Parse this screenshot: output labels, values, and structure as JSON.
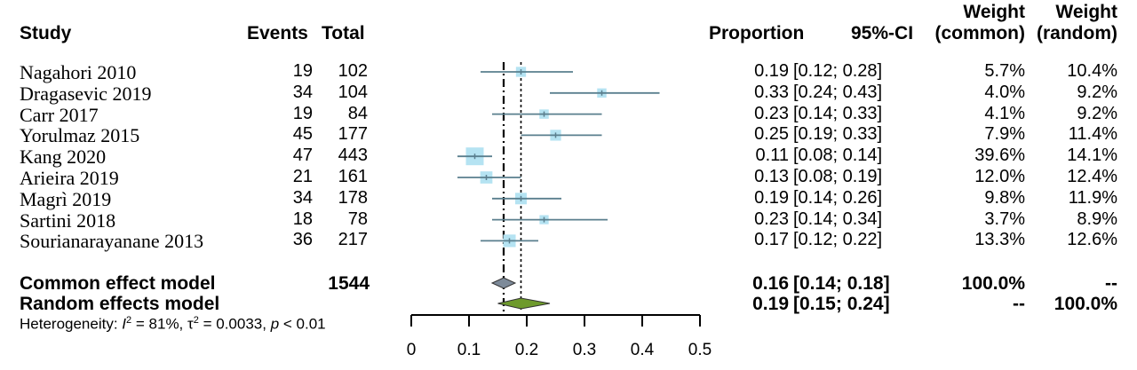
{
  "headers": {
    "study": "Study",
    "events": "Events",
    "total": "Total",
    "proportion": "Proportion",
    "ci": "95%-CI",
    "weight_common_line1": "Weight",
    "weight_common_line2": "(common)",
    "weight_random_line1": "Weight",
    "weight_random_line2": "(random)"
  },
  "chart_data": {
    "type": "forest",
    "xlim": [
      0,
      0.5
    ],
    "xticks": [
      0,
      0.1,
      0.2,
      0.3,
      0.4,
      0.5
    ],
    "xtick_labels": [
      "0",
      "0.1",
      "0.2",
      "0.3",
      "0.4",
      "0.5"
    ],
    "common_line": 0.16,
    "random_line": 0.19,
    "studies": [
      {
        "name": "Nagahori 2010",
        "events": "19",
        "total": "102",
        "prop": 0.19,
        "lo": 0.12,
        "hi": 0.28,
        "prop_text": "0.19",
        "ci_text": "[0.12; 0.28]",
        "w_common": "5.7%",
        "w_random": "10.4%",
        "w": 5.7
      },
      {
        "name": "Dragasevic 2019",
        "events": "34",
        "total": "104",
        "prop": 0.33,
        "lo": 0.24,
        "hi": 0.43,
        "prop_text": "0.33",
        "ci_text": "[0.24; 0.43]",
        "w_common": "4.0%",
        "w_random": "9.2%",
        "w": 4.0
      },
      {
        "name": "Carr 2017",
        "events": "19",
        "total": "84",
        "prop": 0.23,
        "lo": 0.14,
        "hi": 0.33,
        "prop_text": "0.23",
        "ci_text": "[0.14; 0.33]",
        "w_common": "4.1%",
        "w_random": "9.2%",
        "w": 4.1
      },
      {
        "name": "Yorulmaz 2015",
        "events": "45",
        "total": "177",
        "prop": 0.25,
        "lo": 0.19,
        "hi": 0.33,
        "prop_text": "0.25",
        "ci_text": "[0.19; 0.33]",
        "w_common": "7.9%",
        "w_random": "11.4%",
        "w": 7.9
      },
      {
        "name": "Kang 2020",
        "events": "47",
        "total": "443",
        "prop": 0.11,
        "lo": 0.08,
        "hi": 0.14,
        "prop_text": "0.11",
        "ci_text": "[0.08; 0.14]",
        "w_common": "39.6%",
        "w_random": "14.1%",
        "w": 39.6
      },
      {
        "name": "Arieira 2019",
        "events": "21",
        "total": "161",
        "prop": 0.13,
        "lo": 0.08,
        "hi": 0.19,
        "prop_text": "0.13",
        "ci_text": "[0.08; 0.19]",
        "w_common": "12.0%",
        "w_random": "12.4%",
        "w": 12.0
      },
      {
        "name": "Magrì 2019",
        "events": "34",
        "total": "178",
        "prop": 0.19,
        "lo": 0.14,
        "hi": 0.26,
        "prop_text": "0.19",
        "ci_text": "[0.14; 0.26]",
        "w_common": "9.8%",
        "w_random": "11.9%",
        "w": 9.8
      },
      {
        "name": "Sartini 2018",
        "events": "18",
        "total": "78",
        "prop": 0.23,
        "lo": 0.14,
        "hi": 0.34,
        "prop_text": "0.23",
        "ci_text": "[0.14; 0.34]",
        "w_common": "3.7%",
        "w_random": "8.9%",
        "w": 3.7
      },
      {
        "name": "Sourianarayanane 2013",
        "events": "36",
        "total": "217",
        "prop": 0.17,
        "lo": 0.12,
        "hi": 0.22,
        "prop_text": "0.17",
        "ci_text": "[0.12; 0.22]",
        "w_common": "13.3%",
        "w_random": "12.6%",
        "w": 13.3
      }
    ],
    "common": {
      "name": "Common effect model",
      "total": "1544",
      "prop": 0.16,
      "lo": 0.14,
      "hi": 0.18,
      "prop_text": "0.16",
      "ci_text": "[0.14; 0.18]",
      "w_common": "100.0%",
      "w_random": "--"
    },
    "random": {
      "name": "Random effects model",
      "prop": 0.19,
      "lo": 0.15,
      "hi": 0.24,
      "prop_text": "0.19",
      "ci_text": "[0.15; 0.24]",
      "w_common": "--",
      "w_random": "100.0%"
    },
    "heterogeneity": {
      "prefix": "Heterogeneity: ",
      "i2_symbol": "I",
      "i2_value": " = 81%, ",
      "tau2_symbol": "τ",
      "tau2_value": " = 0.0033, ",
      "p_symbol": "p",
      "p_value": " < 0.01"
    },
    "colors": {
      "ci_line": "#5a7f8e",
      "box_fill": "#b5e3f2",
      "common_diamond": "#7d8a99",
      "random_diamond": "#6e9a2c"
    }
  }
}
